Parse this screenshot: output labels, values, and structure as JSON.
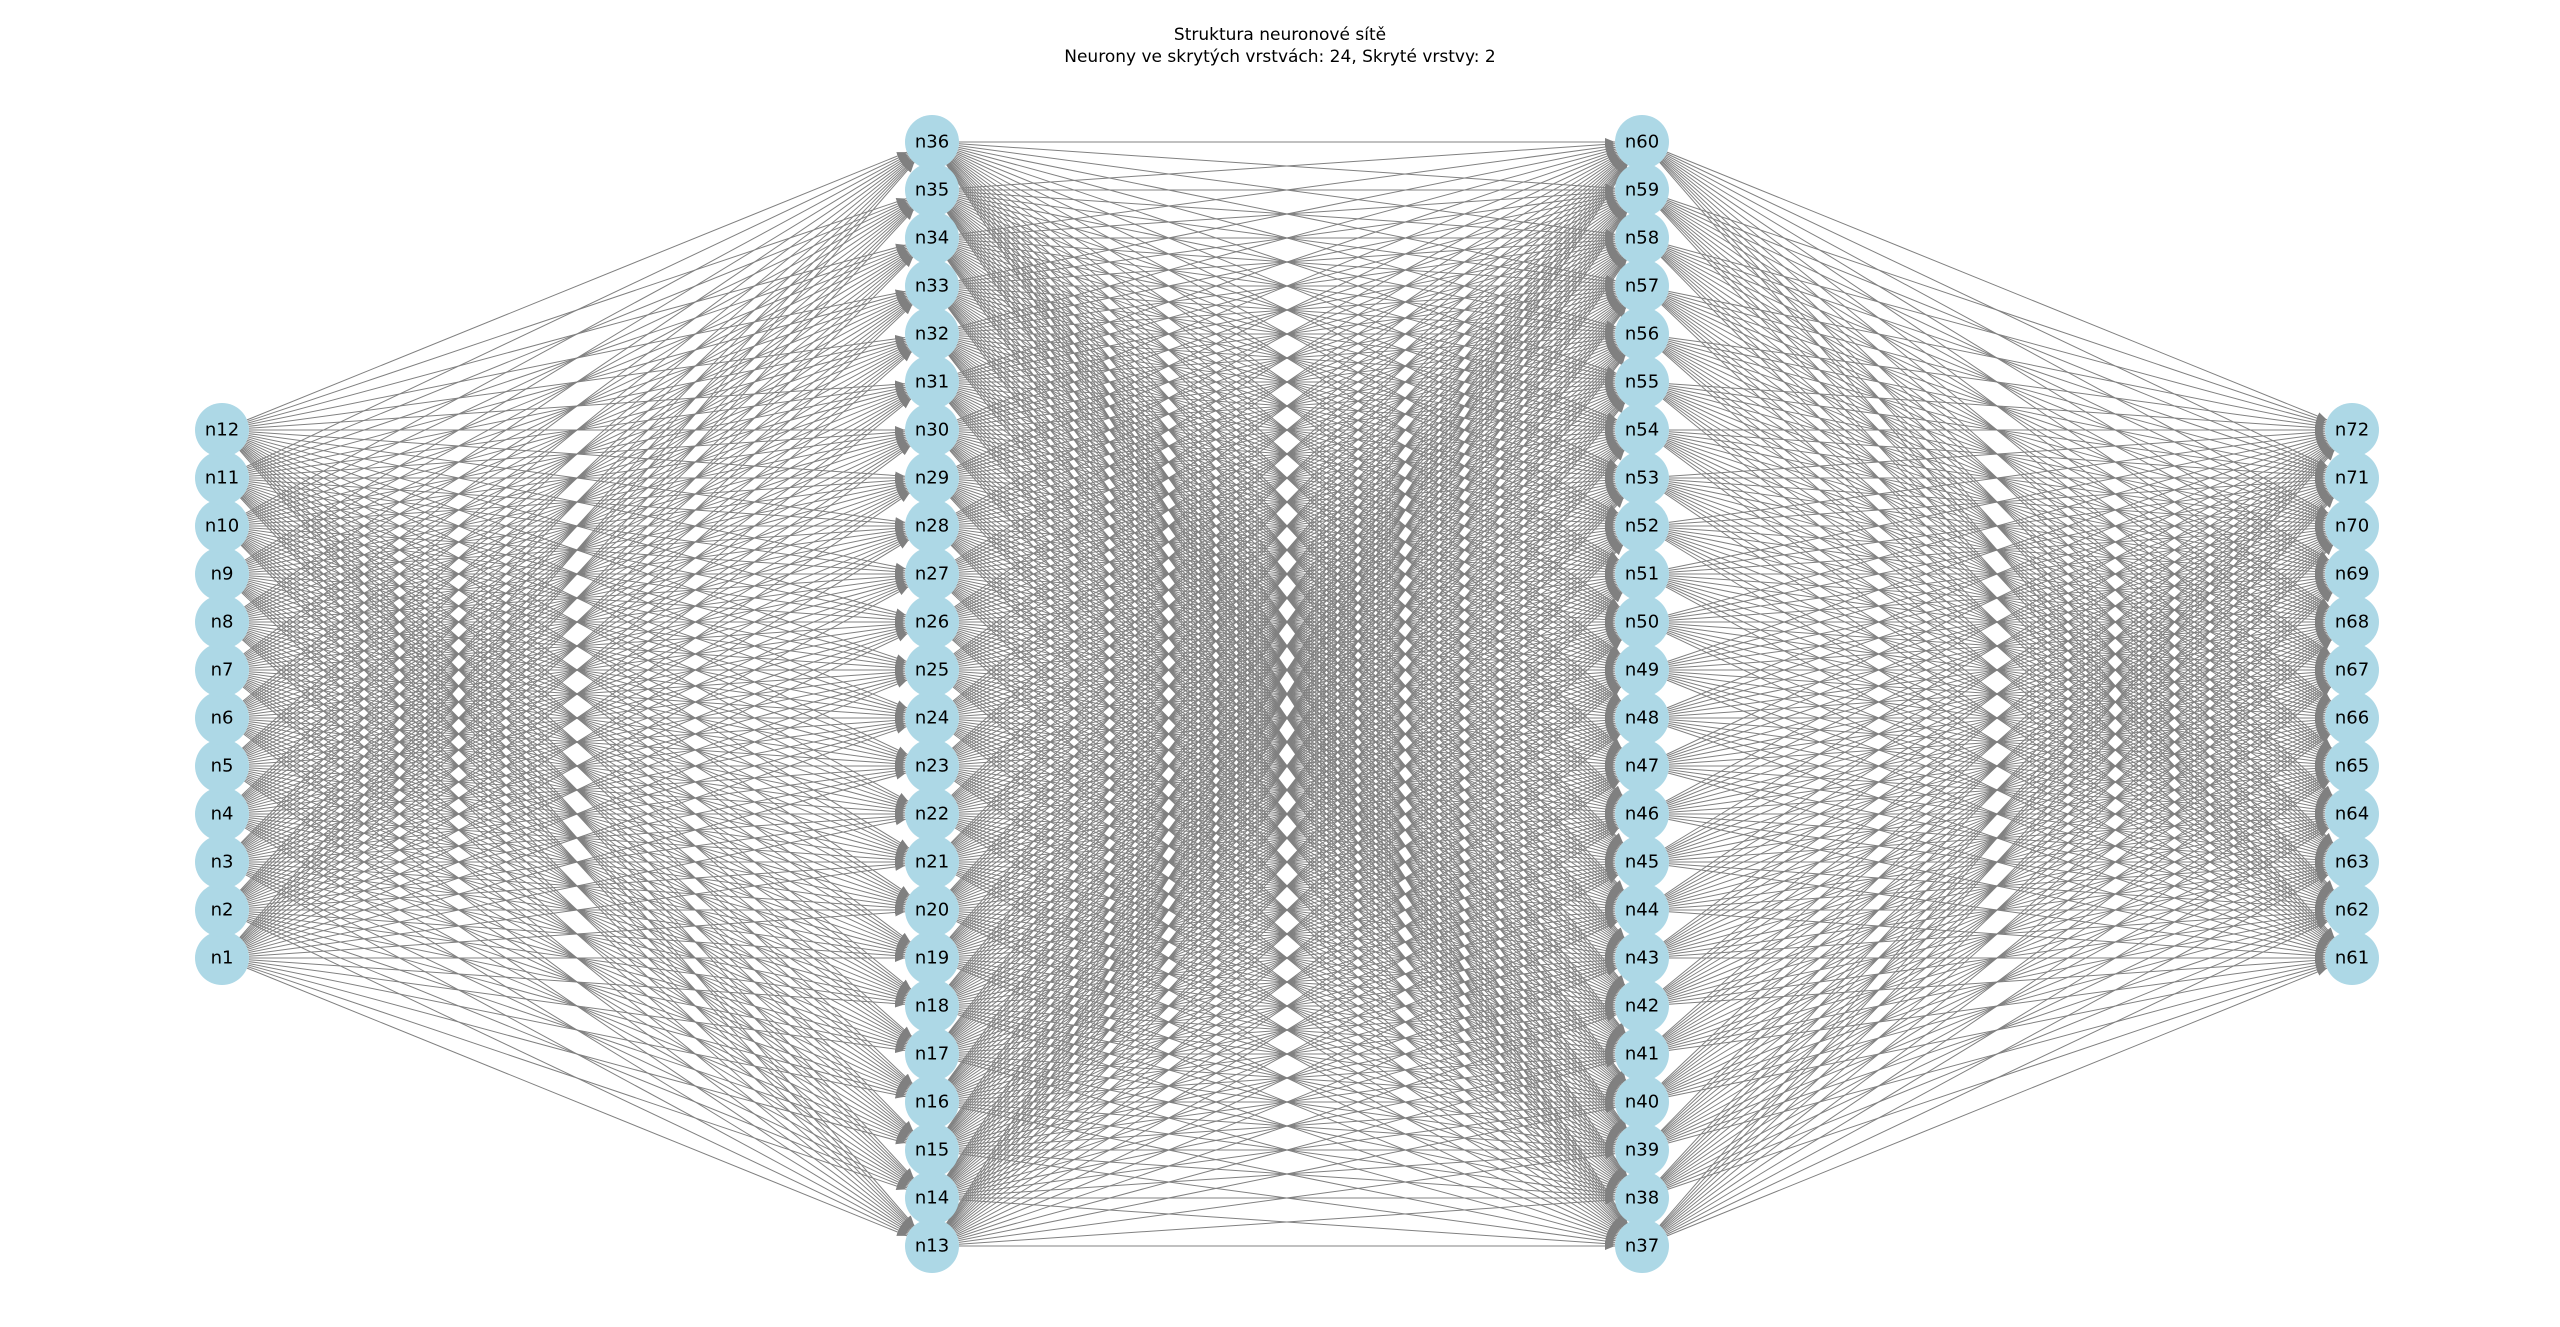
{
  "title": "Struktura neuronové sítě",
  "subtitle": "Neurony ve skrytých vrstvách: 24, Skryté vrstvy: 2",
  "colors": {
    "node": "#add8e6",
    "edge": "#808080",
    "label": "#000000"
  },
  "layers": [
    {
      "name": "input",
      "nodes": [
        "n1",
        "n2",
        "n3",
        "n4",
        "n5",
        "n6",
        "n7",
        "n8",
        "n9",
        "n10",
        "n11",
        "n12"
      ]
    },
    {
      "name": "hidden-1",
      "nodes": [
        "n13",
        "n14",
        "n15",
        "n16",
        "n17",
        "n18",
        "n19",
        "n20",
        "n21",
        "n22",
        "n23",
        "n24",
        "n25",
        "n26",
        "n27",
        "n28",
        "n29",
        "n30",
        "n31",
        "n32",
        "n33",
        "n34",
        "n35",
        "n36"
      ]
    },
    {
      "name": "hidden-2",
      "nodes": [
        "n37",
        "n38",
        "n39",
        "n40",
        "n41",
        "n42",
        "n43",
        "n44",
        "n45",
        "n46",
        "n47",
        "n48",
        "n49",
        "n50",
        "n51",
        "n52",
        "n53",
        "n54",
        "n55",
        "n56",
        "n57",
        "n58",
        "n59",
        "n60"
      ]
    },
    {
      "name": "output",
      "nodes": [
        "n61",
        "n62",
        "n63",
        "n64",
        "n65",
        "n66",
        "n67",
        "n68",
        "n69",
        "n70",
        "n71",
        "n72"
      ]
    }
  ],
  "connectivity": "fully-connected between adjacent layers, directed left to right"
}
